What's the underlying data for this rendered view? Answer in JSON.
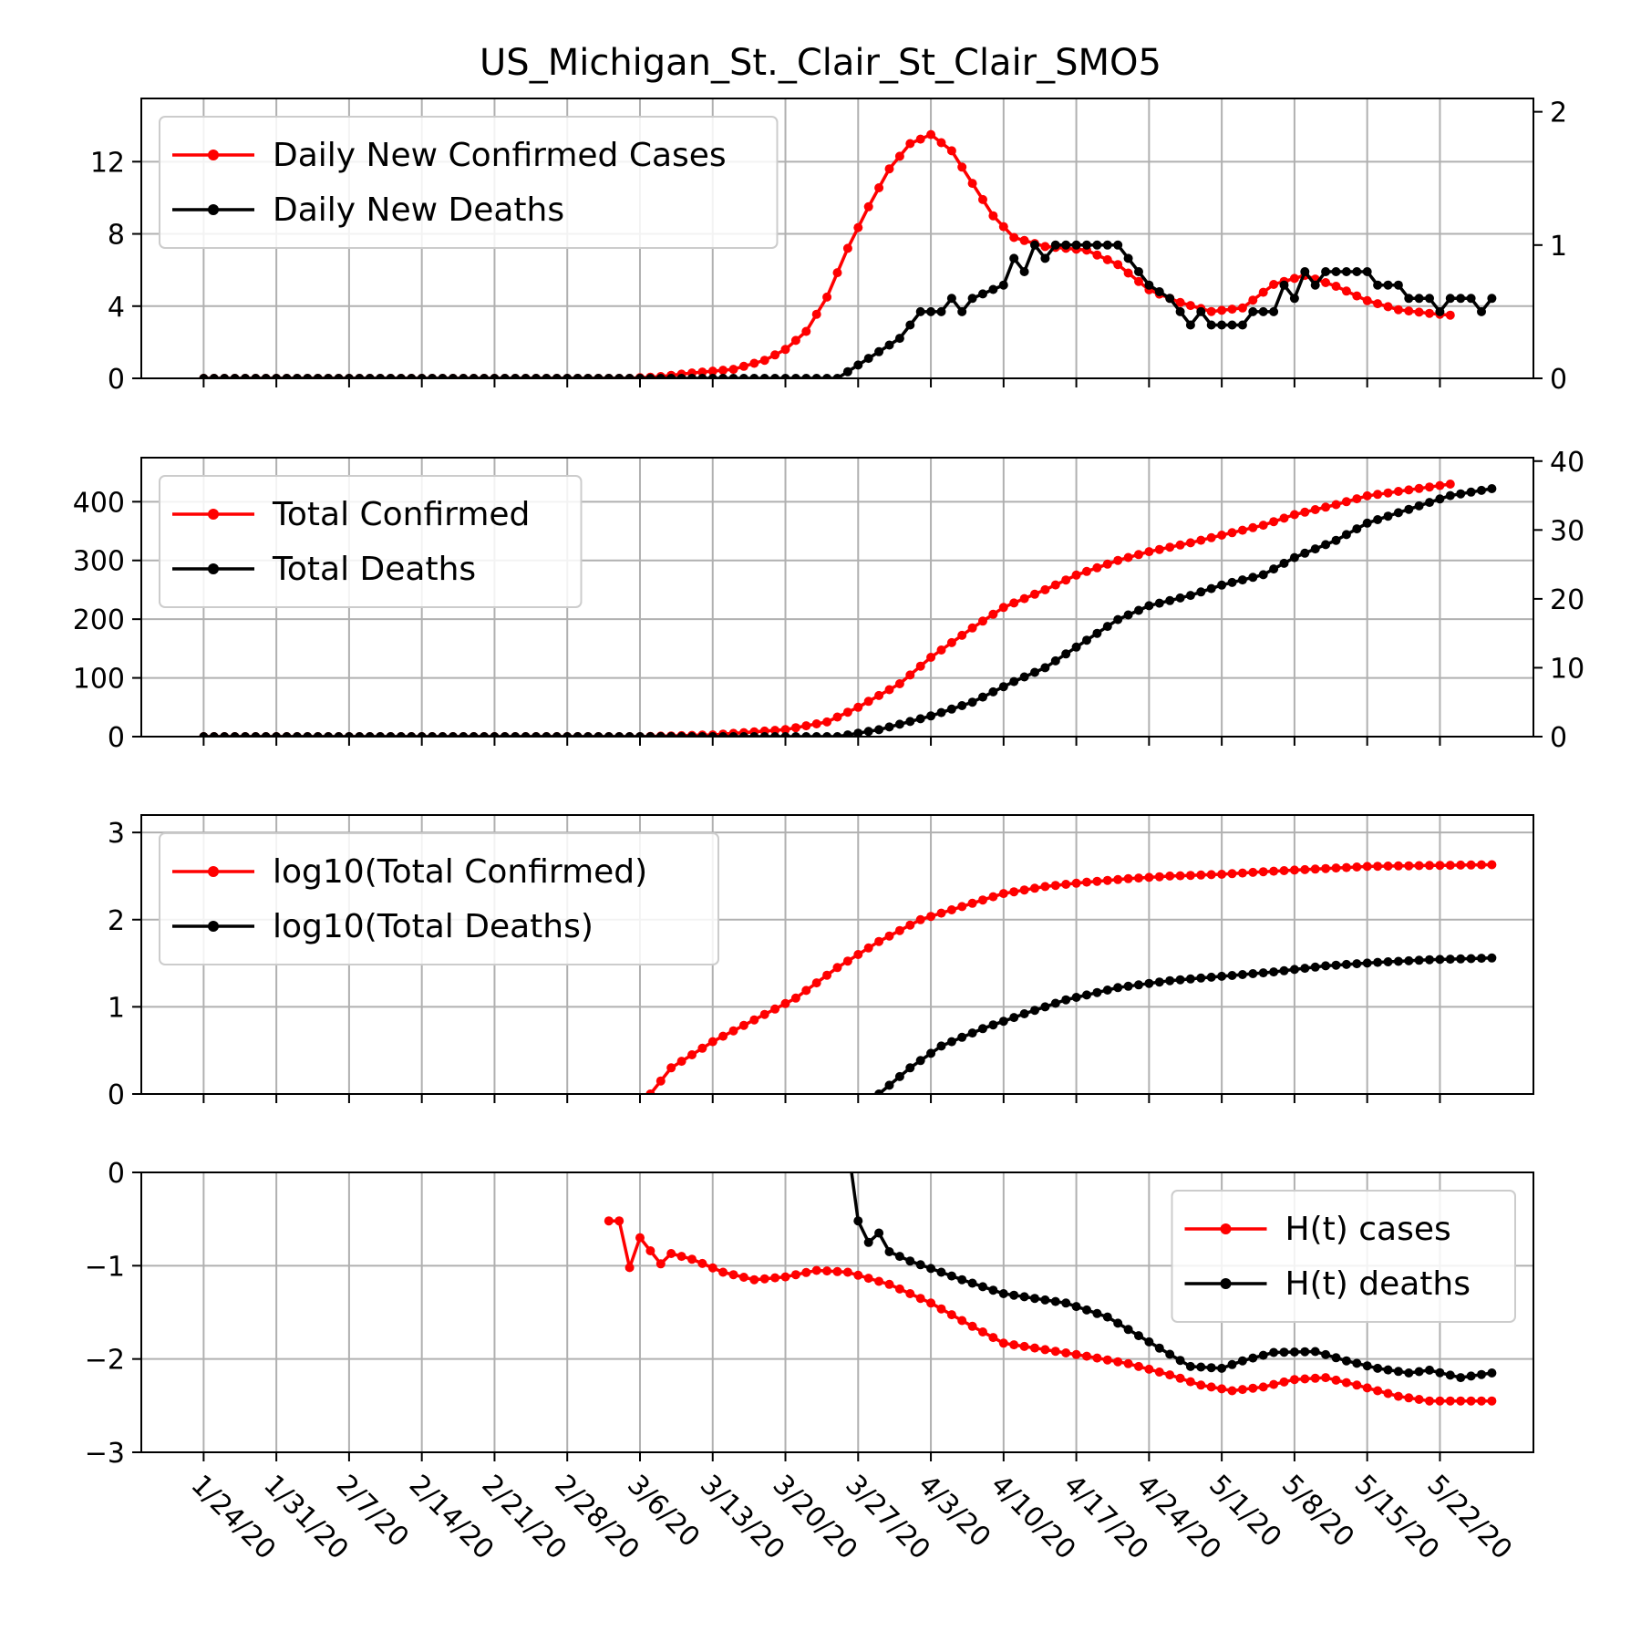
{
  "title": "US_Michigan_St._Clair_St_Clair_SMO5",
  "x_ticks": [
    "1/24/20",
    "1/31/20",
    "2/7/20",
    "2/14/20",
    "2/21/20",
    "2/28/20",
    "3/6/20",
    "3/13/20",
    "3/20/20",
    "3/27/20",
    "4/3/20",
    "4/10/20",
    "4/17/20",
    "4/24/20",
    "5/1/20",
    "5/8/20",
    "5/15/20",
    "5/22/20"
  ],
  "colors": {
    "cases": "#ff0000",
    "deaths": "#000000",
    "grid": "#b0b0b0"
  },
  "chart_data": [
    {
      "type": "line",
      "xlim": [
        "1/18/20",
        "5/31/20"
      ],
      "ylim_left": [
        0,
        15.5
      ],
      "yticks_left": [
        0,
        4,
        8,
        12
      ],
      "ylim_right": [
        0,
        2.1
      ],
      "yticks_right": [
        0,
        1,
        2
      ],
      "legend_loc": "upper-left",
      "grid": true,
      "series": [
        {
          "name": "Daily New Confirmed Cases",
          "axis": "left",
          "color": "#ff0000",
          "points": [
            [
              "1/24/20",
              0
            ],
            [
              "3/5/20",
              0
            ],
            [
              "3/8/20",
              0.1
            ],
            [
              "3/11/20",
              0.3
            ],
            [
              "3/15/20",
              0.5
            ],
            [
              "3/18/20",
              1.0
            ],
            [
              "3/20/20",
              1.6
            ],
            [
              "3/22/20",
              2.6
            ],
            [
              "3/24/20",
              4.5
            ],
            [
              "3/26/20",
              7.2
            ],
            [
              "3/28/20",
              9.5
            ],
            [
              "3/30/20",
              11.6
            ],
            [
              "4/1/20",
              13.0
            ],
            [
              "4/3/20",
              13.5
            ],
            [
              "4/5/20",
              12.6
            ],
            [
              "4/7/20",
              10.8
            ],
            [
              "4/9/20",
              9.0
            ],
            [
              "4/11/20",
              7.8
            ],
            [
              "4/14/20",
              7.3
            ],
            [
              "4/18/20",
              7.1
            ],
            [
              "4/21/20",
              6.3
            ],
            [
              "4/24/20",
              4.9
            ],
            [
              "4/27/20",
              4.2
            ],
            [
              "4/30/20",
              3.7
            ],
            [
              "5/3/20",
              3.9
            ],
            [
              "5/6/20",
              5.2
            ],
            [
              "5/9/20",
              5.7
            ],
            [
              "5/12/20",
              5.1
            ],
            [
              "5/15/20",
              4.3
            ],
            [
              "5/18/20",
              3.8
            ],
            [
              "5/21/20",
              3.6
            ],
            [
              "5/23/20",
              3.5
            ]
          ]
        },
        {
          "name": "Daily New Deaths",
          "axis": "right",
          "color": "#000000",
          "points": [
            [
              "1/24/20",
              0
            ],
            [
              "3/25/20",
              0
            ],
            [
              "3/27/20",
              0.1
            ],
            [
              "3/29/20",
              0.2
            ],
            [
              "3/31/20",
              0.3
            ],
            [
              "4/2/20",
              0.5
            ],
            [
              "4/4/20",
              0.5
            ],
            [
              "4/5/20",
              0.6
            ],
            [
              "4/6/20",
              0.5
            ],
            [
              "4/7/20",
              0.6
            ],
            [
              "4/10/20",
              0.7
            ],
            [
              "4/11/20",
              0.9
            ],
            [
              "4/12/20",
              0.8
            ],
            [
              "4/13/20",
              1.0
            ],
            [
              "4/14/20",
              0.9
            ],
            [
              "4/15/20",
              1.0
            ],
            [
              "4/21/20",
              1.0
            ],
            [
              "4/22/20",
              0.9
            ],
            [
              "4/24/20",
              0.7
            ],
            [
              "4/26/20",
              0.6
            ],
            [
              "4/27/20",
              0.5
            ],
            [
              "4/28/20",
              0.4
            ],
            [
              "4/29/20",
              0.5
            ],
            [
              "4/30/20",
              0.4
            ],
            [
              "5/3/20",
              0.4
            ],
            [
              "5/4/20",
              0.5
            ],
            [
              "5/6/20",
              0.5
            ],
            [
              "5/7/20",
              0.7
            ],
            [
              "5/8/20",
              0.6
            ],
            [
              "5/9/20",
              0.8
            ],
            [
              "5/10/20",
              0.7
            ],
            [
              "5/11/20",
              0.8
            ],
            [
              "5/15/20",
              0.8
            ],
            [
              "5/16/20",
              0.7
            ],
            [
              "5/18/20",
              0.7
            ],
            [
              "5/19/20",
              0.6
            ],
            [
              "5/21/20",
              0.6
            ],
            [
              "5/22/20",
              0.5
            ],
            [
              "5/23/20",
              0.6
            ],
            [
              "5/25/20",
              0.6
            ],
            [
              "5/26/20",
              0.5
            ],
            [
              "5/27/20",
              0.6
            ]
          ]
        }
      ]
    },
    {
      "type": "line",
      "xlim": [
        "1/18/20",
        "5/31/20"
      ],
      "ylim_left": [
        0,
        475
      ],
      "yticks_left": [
        0,
        100,
        200,
        300,
        400
      ],
      "ylim_right": [
        0,
        40.5
      ],
      "yticks_right": [
        0,
        10,
        20,
        30,
        40
      ],
      "legend_loc": "upper-left",
      "grid": true,
      "series": [
        {
          "name": "Total Confirmed",
          "axis": "left",
          "color": "#ff0000",
          "points": [
            [
              "1/24/20",
              0
            ],
            [
              "3/6/20",
              0
            ],
            [
              "3/13/20",
              3
            ],
            [
              "3/20/20",
              12
            ],
            [
              "3/24/20",
              25
            ],
            [
              "3/27/20",
              50
            ],
            [
              "3/31/20",
              90
            ],
            [
              "4/3/20",
              135
            ],
            [
              "4/7/20",
              185
            ],
            [
              "4/10/20",
              220
            ],
            [
              "4/14/20",
              250
            ],
            [
              "4/17/20",
              275
            ],
            [
              "4/21/20",
              300
            ],
            [
              "4/24/20",
              315
            ],
            [
              "4/28/20",
              330
            ],
            [
              "5/1/20",
              343
            ],
            [
              "5/5/20",
              360
            ],
            [
              "5/8/20",
              378
            ],
            [
              "5/12/20",
              395
            ],
            [
              "5/15/20",
              410
            ],
            [
              "5/19/20",
              420
            ],
            [
              "5/23/20",
              430
            ]
          ]
        },
        {
          "name": "Total Deaths",
          "axis": "right",
          "color": "#000000",
          "points": [
            [
              "1/24/20",
              0
            ],
            [
              "3/25/20",
              0
            ],
            [
              "3/29/20",
              1
            ],
            [
              "4/3/20",
              3
            ],
            [
              "4/7/20",
              5
            ],
            [
              "4/11/20",
              8
            ],
            [
              "4/14/20",
              10
            ],
            [
              "4/18/20",
              14
            ],
            [
              "4/21/20",
              17
            ],
            [
              "4/24/20",
              19
            ],
            [
              "4/28/20",
              20.5
            ],
            [
              "5/1/20",
              22
            ],
            [
              "5/5/20",
              23.5
            ],
            [
              "5/8/20",
              26
            ],
            [
              "5/12/20",
              28.5
            ],
            [
              "5/15/20",
              31
            ],
            [
              "5/19/20",
              33
            ],
            [
              "5/23/20",
              35
            ],
            [
              "5/27/20",
              36
            ]
          ]
        }
      ]
    },
    {
      "type": "line",
      "xlim": [
        "1/18/20",
        "5/31/20"
      ],
      "ylim_left": [
        0,
        3.2
      ],
      "yticks_left": [
        0,
        1,
        2,
        3
      ],
      "legend_loc": "upper-left",
      "grid": true,
      "series": [
        {
          "name": "log10(Total Confirmed)",
          "axis": "left",
          "color": "#ff0000",
          "points": [
            [
              "3/7/20",
              0
            ],
            [
              "3/9/20",
              0.3
            ],
            [
              "3/13/20",
              0.6
            ],
            [
              "3/17/20",
              0.85
            ],
            [
              "3/21/20",
              1.1
            ],
            [
              "3/25/20",
              1.45
            ],
            [
              "3/29/20",
              1.75
            ],
            [
              "4/2/20",
              2.0
            ],
            [
              "4/6/20",
              2.15
            ],
            [
              "4/10/20",
              2.3
            ],
            [
              "4/14/20",
              2.38
            ],
            [
              "4/18/20",
              2.43
            ],
            [
              "4/22/20",
              2.47
            ],
            [
              "4/26/20",
              2.5
            ],
            [
              "5/1/20",
              2.52
            ],
            [
              "5/5/20",
              2.55
            ],
            [
              "5/10/20",
              2.58
            ],
            [
              "5/15/20",
              2.61
            ],
            [
              "5/20/20",
              2.62
            ],
            [
              "5/27/20",
              2.63
            ]
          ]
        },
        {
          "name": "log10(Total Deaths)",
          "axis": "left",
          "color": "#000000",
          "points": [
            [
              "3/29/20",
              0
            ],
            [
              "4/1/20",
              0.3
            ],
            [
              "4/4/20",
              0.55
            ],
            [
              "4/8/20",
              0.75
            ],
            [
              "4/12/20",
              0.92
            ],
            [
              "4/16/20",
              1.08
            ],
            [
              "4/21/20",
              1.22
            ],
            [
              "4/26/20",
              1.3
            ],
            [
              "5/1/20",
              1.35
            ],
            [
              "5/6/20",
              1.4
            ],
            [
              "5/11/20",
              1.47
            ],
            [
              "5/16/20",
              1.51
            ],
            [
              "5/21/20",
              1.54
            ],
            [
              "5/27/20",
              1.56
            ]
          ]
        }
      ]
    },
    {
      "type": "line",
      "xlim": [
        "1/18/20",
        "5/31/20"
      ],
      "ylim_left": [
        -3,
        0
      ],
      "yticks_left": [
        -3,
        -2,
        -1,
        0
      ],
      "legend_loc": "upper-right",
      "grid": true,
      "series": [
        {
          "name": "H(t) cases",
          "axis": "left",
          "color": "#ff0000",
          "points": [
            [
              "3/3/20",
              -0.52
            ],
            [
              "3/4/20",
              -0.52
            ],
            [
              "3/5/20",
              -1.02
            ],
            [
              "3/6/20",
              -0.7
            ],
            [
              "3/8/20",
              -0.98
            ],
            [
              "3/9/20",
              -0.87
            ],
            [
              "3/11/20",
              -0.93
            ],
            [
              "3/14/20",
              -1.07
            ],
            [
              "3/17/20",
              -1.15
            ],
            [
              "3/20/20",
              -1.12
            ],
            [
              "3/23/20",
              -1.05
            ],
            [
              "3/26/20",
              -1.07
            ],
            [
              "3/30/20",
              -1.2
            ],
            [
              "4/3/20",
              -1.4
            ],
            [
              "4/7/20",
              -1.65
            ],
            [
              "4/10/20",
              -1.83
            ],
            [
              "4/14/20",
              -1.9
            ],
            [
              "4/18/20",
              -1.97
            ],
            [
              "4/22/20",
              -2.05
            ],
            [
              "4/26/20",
              -2.17
            ],
            [
              "4/29/20",
              -2.28
            ],
            [
              "5/2/20",
              -2.34
            ],
            [
              "5/5/20",
              -2.3
            ],
            [
              "5/8/20",
              -2.22
            ],
            [
              "5/11/20",
              -2.2
            ],
            [
              "5/14/20",
              -2.28
            ],
            [
              "5/18/20",
              -2.4
            ],
            [
              "5/21/20",
              -2.45
            ],
            [
              "5/27/20",
              -2.45
            ]
          ]
        },
        {
          "name": "H(t) deaths",
          "axis": "left",
          "color": "#000000",
          "points": [
            [
              "3/26/20",
              0.3
            ],
            [
              "3/27/20",
              -0.52
            ],
            [
              "3/28/20",
              -0.75
            ],
            [
              "3/29/20",
              -0.65
            ],
            [
              "3/30/20",
              -0.85
            ],
            [
              "4/1/20",
              -0.95
            ],
            [
              "4/3/20",
              -1.03
            ],
            [
              "4/6/20",
              -1.15
            ],
            [
              "4/10/20",
              -1.3
            ],
            [
              "4/13/20",
              -1.35
            ],
            [
              "4/16/20",
              -1.4
            ],
            [
              "4/20/20",
              -1.55
            ],
            [
              "4/23/20",
              -1.75
            ],
            [
              "4/26/20",
              -1.95
            ],
            [
              "4/28/20",
              -2.08
            ],
            [
              "5/1/20",
              -2.1
            ],
            [
              "5/3/20",
              -2.02
            ],
            [
              "5/6/20",
              -1.93
            ],
            [
              "5/10/20",
              -1.92
            ],
            [
              "5/13/20",
              -2.02
            ],
            [
              "5/16/20",
              -2.1
            ],
            [
              "5/19/20",
              -2.15
            ],
            [
              "5/21/20",
              -2.12
            ],
            [
              "5/24/20",
              -2.2
            ],
            [
              "5/27/20",
              -2.15
            ]
          ]
        }
      ]
    }
  ]
}
